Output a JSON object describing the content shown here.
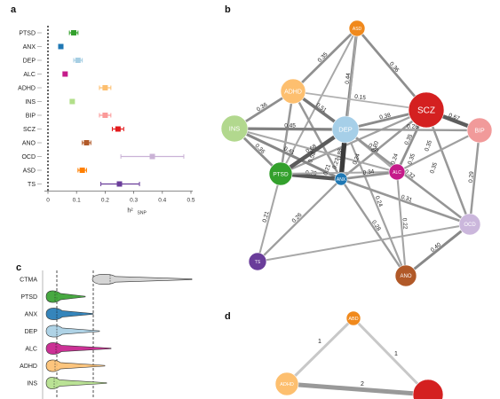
{
  "panels": {
    "a": "a",
    "b": "b",
    "c": "c",
    "d": "d"
  },
  "chart_data": [
    {
      "panel": "a",
      "type": "scatter",
      "subtype": "dot-and-whisker",
      "categories": [
        "PTSD",
        "ANX",
        "DEP",
        "ALC",
        "ADHD",
        "INS",
        "BIP",
        "SCZ",
        "ANO",
        "OCD",
        "ASD",
        "TS"
      ],
      "values": [
        0.09,
        0.045,
        0.105,
        0.06,
        0.2,
        0.085,
        0.2,
        0.245,
        0.135,
        0.365,
        0.12,
        0.25
      ],
      "ci_low": [
        0.075,
        0.04,
        0.09,
        0.055,
        0.18,
        0.08,
        0.18,
        0.225,
        0.12,
        0.255,
        0.105,
        0.185
      ],
      "ci_high": [
        0.105,
        0.05,
        0.12,
        0.065,
        0.22,
        0.09,
        0.22,
        0.265,
        0.15,
        0.475,
        0.135,
        0.32
      ],
      "colors": [
        "#33a02c",
        "#1f78b4",
        "#a6cee3",
        "#c51b8a",
        "#fdbf6f",
        "#b2df8a",
        "#fb9a99",
        "#e31a1c",
        "#b15928",
        "#cab2d6",
        "#ff7f00",
        "#6a3d9a"
      ],
      "xticks": [
        "0",
        "0.1",
        "0.2",
        "0.3",
        "0.4",
        "0.5"
      ],
      "xlim": [
        0,
        0.5
      ],
      "xlabel": "h²",
      "xlabel_sub": "SNP",
      "reference_line_x": 0
    },
    {
      "panel": "b",
      "type": "network",
      "nodes": [
        {
          "id": "ASD",
          "label": "ASD",
          "color": "#f0891c",
          "size": 9
        },
        {
          "id": "ADHD",
          "label": "ADHD",
          "color": "#fdbf6f",
          "size": 14
        },
        {
          "id": "SCZ",
          "label": "SCZ",
          "color": "#d42020",
          "size": 20
        },
        {
          "id": "INS",
          "label": "INS",
          "color": "#b2d88e",
          "size": 15
        },
        {
          "id": "DEP",
          "label": "DEP",
          "color": "#a6cfe8",
          "size": 15
        },
        {
          "id": "BIP",
          "label": "BIP",
          "color": "#f19a9a",
          "size": 14
        },
        {
          "id": "PTSD",
          "label": "PTSD",
          "color": "#33a02c",
          "size": 13
        },
        {
          "id": "ANX",
          "label": "ANX",
          "color": "#1f78b4",
          "size": 7
        },
        {
          "id": "ALC",
          "label": "ALC",
          "color": "#c51b8a",
          "size": 9
        },
        {
          "id": "OCD",
          "label": "OCD",
          "color": "#cbb7dc",
          "size": 12
        },
        {
          "id": "TS",
          "label": "TS",
          "color": "#6a3d9a",
          "size": 10
        },
        {
          "id": "ANO",
          "label": "ANO",
          "color": "#b15928",
          "size": 12
        }
      ],
      "edges": [
        {
          "source": "ASD",
          "target": "ADHD",
          "label": "0.35",
          "weight": 0.35
        },
        {
          "source": "ASD",
          "target": "SCZ",
          "label": "0.36",
          "weight": 0.36
        },
        {
          "source": "ASD",
          "target": "DEP",
          "label": "0.44",
          "weight": 0.44
        },
        {
          "source": "ASD",
          "target": "PTSD",
          "label": "",
          "weight": 0.2
        },
        {
          "source": "ASD",
          "target": "ANX",
          "label": "",
          "weight": 0.2
        },
        {
          "source": "ADHD",
          "target": "SCZ",
          "label": "0.15",
          "weight": 0.15
        },
        {
          "source": "ADHD",
          "target": "INS",
          "label": "0.36",
          "weight": 0.36
        },
        {
          "source": "ADHD",
          "target": "DEP",
          "label": "0.51",
          "weight": 0.51
        },
        {
          "source": "ADHD",
          "target": "PTSD",
          "label": "",
          "weight": 0.3
        },
        {
          "source": "ADHD",
          "target": "ANX",
          "label": "",
          "weight": 0.3
        },
        {
          "source": "SCZ",
          "target": "DEP",
          "label": "0.38",
          "weight": 0.38
        },
        {
          "source": "SCZ",
          "target": "BIP",
          "label": "0.67",
          "weight": 0.67
        },
        {
          "source": "SCZ",
          "target": "ALC",
          "label": "0.35",
          "weight": 0.35
        },
        {
          "source": "SCZ",
          "target": "OCD",
          "label": "",
          "weight": 0.3
        },
        {
          "source": "SCZ",
          "target": "PTSD",
          "label": "",
          "weight": 0.25
        },
        {
          "source": "SCZ",
          "target": "ANX",
          "label": "",
          "weight": 0.3
        },
        {
          "source": "INS",
          "target": "DEP",
          "label": "0.45",
          "weight": 0.45
        },
        {
          "source": "INS",
          "target": "PTSD",
          "label": "0.36",
          "weight": 0.36
        },
        {
          "source": "INS",
          "target": "ANX",
          "label": "0.41",
          "weight": 0.41
        },
        {
          "source": "INS",
          "target": "ALC",
          "label": "",
          "weight": 0.2
        },
        {
          "source": "DEP",
          "target": "PTSD",
          "label": "0.68",
          "weight": 0.68
        },
        {
          "source": "DEP",
          "target": "ANX",
          "label": "0.88",
          "weight": 0.88
        },
        {
          "source": "DEP",
          "target": "ALC",
          "label": "0.20",
          "weight": 0.2
        },
        {
          "source": "DEP",
          "target": "BIP",
          "label": "0.28",
          "weight": 0.28
        },
        {
          "source": "DEP",
          "target": "OCD",
          "label": "0.32",
          "weight": 0.32
        },
        {
          "source": "DEP",
          "target": "ANO",
          "label": "0.24",
          "weight": 0.24
        },
        {
          "source": "PTSD",
          "target": "ANX",
          "label": "0.70",
          "weight": 0.7
        },
        {
          "source": "PTSD",
          "target": "TS",
          "label": "0.21",
          "weight": 0.21
        },
        {
          "source": "PTSD",
          "target": "ALC",
          "label": "",
          "weight": 0.2
        },
        {
          "source": "ANX",
          "target": "ALC",
          "label": "0.34",
          "weight": 0.34
        },
        {
          "source": "ANX",
          "target": "TS",
          "label": "0.26",
          "weight": 0.26
        },
        {
          "source": "ANX",
          "target": "ANO",
          "label": "0.28",
          "weight": 0.28
        },
        {
          "source": "ANX",
          "target": "OCD",
          "label": "0.31",
          "weight": 0.31
        },
        {
          "source": "ALC",
          "target": "BIP",
          "label": "",
          "weight": 0.25
        },
        {
          "source": "BIP",
          "target": "OCD",
          "label": "0.29",
          "weight": 0.29
        },
        {
          "source": "OCD",
          "target": "ANO",
          "label": "0.40",
          "weight": 0.4
        },
        {
          "source": "TS",
          "target": "OCD",
          "label": "",
          "weight": 0.2
        },
        {
          "source": "ALC",
          "target": "ANO",
          "label": "0.22",
          "weight": 0.22
        }
      ],
      "extra_labels": [
        "0.52",
        "0.21",
        "0.24",
        "0.27",
        "0.24",
        "0.20",
        "0.35",
        "0.35",
        "0.35"
      ]
    },
    {
      "panel": "c",
      "type": "violin",
      "categories": [
        "CTMA",
        "PTSD",
        "ANX",
        "DEP",
        "ALC",
        "ADHD",
        "INS"
      ],
      "colors": [
        "#d0d0d0",
        "#33a02c",
        "#1f78b4",
        "#a6cee3",
        "#c51b8a",
        "#fdbf6f",
        "#b2df8a"
      ],
      "reference_lines": [
        "dashed",
        "dashed"
      ]
    },
    {
      "panel": "d",
      "type": "network",
      "nodes": [
        {
          "id": "ABD",
          "label": "ABD",
          "color": "#f0891c"
        },
        {
          "id": "ADHD",
          "label": "ADHD",
          "color": "#fdbf6f"
        },
        {
          "id": "RED",
          "label": "",
          "color": "#d42020"
        }
      ],
      "edges": [
        {
          "source": "ABD",
          "target": "ADHD",
          "label": "1"
        },
        {
          "source": "ABD",
          "target": "RED",
          "label": "1"
        },
        {
          "source": "ADHD",
          "target": "RED",
          "label": "2"
        }
      ]
    }
  ]
}
